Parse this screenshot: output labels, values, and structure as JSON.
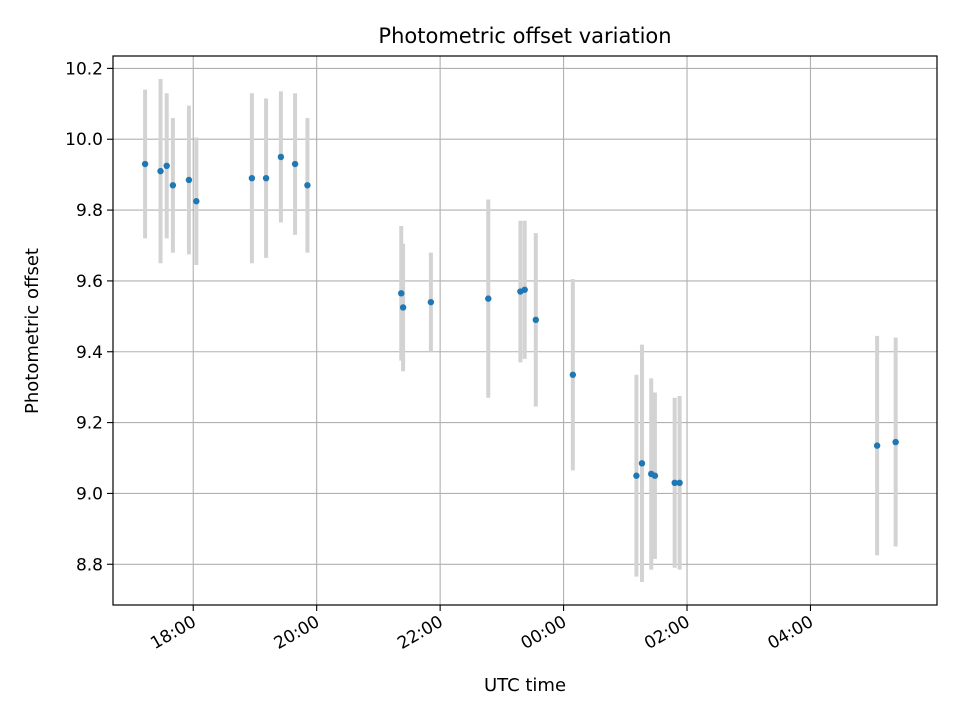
{
  "chart_data": {
    "type": "scatter",
    "title": "Photometric offset variation",
    "xlabel": "UTC time",
    "ylabel": "Photometric offset",
    "x_axis_unit": "hours relative to 00:00 UTC of the night",
    "xlim": [
      -7.3,
      6.05
    ],
    "ylim": [
      8.685,
      10.235
    ],
    "grid": true,
    "legend": "none",
    "x_ticks": [
      {
        "value": -6,
        "label": "18:00"
      },
      {
        "value": -4,
        "label": "20:00"
      },
      {
        "value": -2,
        "label": "22:00"
      },
      {
        "value": 0,
        "label": "00:00"
      },
      {
        "value": 2,
        "label": "02:00"
      },
      {
        "value": 4,
        "label": "04:00"
      }
    ],
    "y_ticks": [
      8.8,
      9.0,
      9.2,
      9.4,
      9.6,
      9.8,
      10.0,
      10.2
    ],
    "colors": {
      "point": "#1f77b4",
      "errorbar": "#d3d3d3",
      "grid": "#b0b0b0"
    },
    "series": [
      {
        "points": [
          {
            "x": -6.78,
            "y": 9.93,
            "err": 0.21
          },
          {
            "x": -6.53,
            "y": 9.91,
            "err": 0.26
          },
          {
            "x": -6.43,
            "y": 9.925,
            "err": 0.205
          },
          {
            "x": -6.33,
            "y": 9.87,
            "err": 0.19
          },
          {
            "x": -6.07,
            "y": 9.885,
            "err": 0.21
          },
          {
            "x": -5.95,
            "y": 9.825,
            "err": 0.18
          },
          {
            "x": -5.05,
            "y": 9.89,
            "err": 0.24
          },
          {
            "x": -4.82,
            "y": 9.89,
            "err": 0.225
          },
          {
            "x": -4.58,
            "y": 9.95,
            "err": 0.185
          },
          {
            "x": -4.35,
            "y": 9.93,
            "err": 0.2
          },
          {
            "x": -4.15,
            "y": 9.87,
            "err": 0.19
          },
          {
            "x": -2.63,
            "y": 9.565,
            "err": 0.19
          },
          {
            "x": -2.6,
            "y": 9.525,
            "err": 0.18
          },
          {
            "x": -2.15,
            "y": 9.54,
            "err": 0.14
          },
          {
            "x": -1.22,
            "y": 9.55,
            "err": 0.28
          },
          {
            "x": -0.7,
            "y": 9.57,
            "err": 0.2
          },
          {
            "x": -0.63,
            "y": 9.575,
            "err": 0.195
          },
          {
            "x": -0.45,
            "y": 9.49,
            "err": 0.245
          },
          {
            "x": 0.15,
            "y": 9.335,
            "err": 0.27
          },
          {
            "x": 1.18,
            "y": 9.05,
            "err": 0.285
          },
          {
            "x": 1.27,
            "y": 9.085,
            "err": 0.335
          },
          {
            "x": 1.42,
            "y": 9.055,
            "err": 0.27
          },
          {
            "x": 1.48,
            "y": 9.05,
            "err": 0.235
          },
          {
            "x": 1.8,
            "y": 9.03,
            "err": 0.24
          },
          {
            "x": 1.88,
            "y": 9.03,
            "err": 0.245
          },
          {
            "x": 5.08,
            "y": 9.135,
            "err": 0.31
          },
          {
            "x": 5.38,
            "y": 9.145,
            "err": 0.295
          }
        ]
      }
    ]
  }
}
